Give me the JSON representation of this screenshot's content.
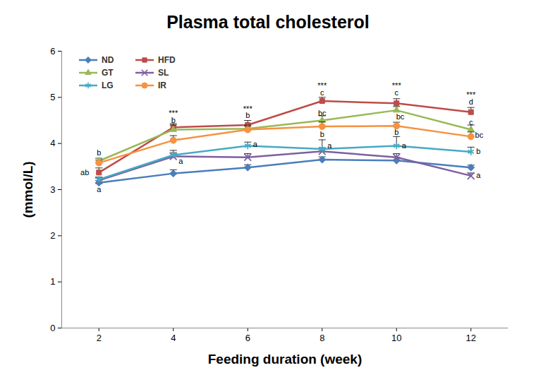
{
  "chart_data": {
    "type": "line",
    "title": "Plasma total cholesterol",
    "x_label": "Feeding duration (week)",
    "y_label": "(mmol/L)",
    "x": [
      2,
      4,
      6,
      8,
      10,
      12
    ],
    "xlim": [
      1,
      13
    ],
    "xticks": [
      2,
      4,
      6,
      8,
      10,
      12
    ],
    "ylim": [
      0,
      6
    ],
    "yticks": [
      0,
      1,
      2,
      3,
      4,
      5,
      6
    ],
    "grid": false,
    "legend": "top-left",
    "series": [
      {
        "name": "ND",
        "color": "#4a7ebb",
        "marker": "diamond",
        "values": [
          3.15,
          3.35,
          3.48,
          3.65,
          3.63,
          3.48
        ],
        "errors": [
          0.05,
          0.08,
          0.06,
          0.06,
          0.07,
          0.05
        ]
      },
      {
        "name": "HFD",
        "color": "#be4b48",
        "marker": "square",
        "values": [
          3.37,
          4.35,
          4.4,
          4.92,
          4.87,
          4.68
        ],
        "errors": [
          0.1,
          0.08,
          0.1,
          0.08,
          0.1,
          0.1
        ]
      },
      {
        "name": "GT",
        "color": "#98b954",
        "marker": "triangle",
        "values": [
          3.62,
          4.3,
          4.32,
          4.5,
          4.72,
          4.3
        ],
        "errors": [
          0.06,
          0.1,
          0.08,
          0.1,
          0.08,
          0.1
        ]
      },
      {
        "name": "SL",
        "color": "#7d60a0",
        "marker": "x",
        "values": [
          3.2,
          3.72,
          3.7,
          3.83,
          3.7,
          3.3
        ],
        "errors": [
          0.05,
          0.08,
          0.08,
          0.08,
          0.08,
          0.06
        ]
      },
      {
        "name": "LG",
        "color": "#46aac5",
        "marker": "asterisk",
        "values": [
          3.22,
          3.75,
          3.95,
          3.88,
          3.95,
          3.82
        ],
        "errors": [
          0.05,
          0.1,
          0.08,
          0.2,
          0.2,
          0.1
        ]
      },
      {
        "name": "IR",
        "color": "#f69240",
        "marker": "circle",
        "values": [
          3.58,
          4.07,
          4.3,
          4.37,
          4.38,
          4.15
        ],
        "errors": [
          0.06,
          0.1,
          0.08,
          0.1,
          0.08,
          0.1
        ]
      }
    ],
    "annotations": [
      {
        "x": 2,
        "y": 3.8,
        "text": "b"
      },
      {
        "x": 1.62,
        "y": 3.37,
        "text": "ab"
      },
      {
        "x": 2,
        "y": 3.0,
        "text": "a"
      },
      {
        "x": 4,
        "y": 4.65,
        "text": "***"
      },
      {
        "x": 4,
        "y": 4.5,
        "text": "b"
      },
      {
        "x": 4.2,
        "y": 3.62,
        "text": "a"
      },
      {
        "x": 6,
        "y": 4.75,
        "text": "***"
      },
      {
        "x": 6,
        "y": 4.6,
        "text": "b"
      },
      {
        "x": 6.2,
        "y": 3.98,
        "text": "a"
      },
      {
        "x": 8,
        "y": 5.25,
        "text": "***"
      },
      {
        "x": 8,
        "y": 5.1,
        "text": "c"
      },
      {
        "x": 8,
        "y": 4.66,
        "text": "bc"
      },
      {
        "x": 8,
        "y": 4.2,
        "text": "b"
      },
      {
        "x": 8.2,
        "y": 3.95,
        "text": "a"
      },
      {
        "x": 10,
        "y": 5.25,
        "text": "***"
      },
      {
        "x": 10,
        "y": 5.1,
        "text": "c"
      },
      {
        "x": 10.1,
        "y": 4.58,
        "text": "bc"
      },
      {
        "x": 10,
        "y": 4.24,
        "text": "b"
      },
      {
        "x": 10.2,
        "y": 3.95,
        "text": "a"
      },
      {
        "x": 12,
        "y": 5.05,
        "text": "***"
      },
      {
        "x": 12,
        "y": 4.9,
        "text": "d"
      },
      {
        "x": 12,
        "y": 4.45,
        "text": "c"
      },
      {
        "x": 12.22,
        "y": 4.18,
        "text": "bc"
      },
      {
        "x": 12.2,
        "y": 3.82,
        "text": "b"
      },
      {
        "x": 12.2,
        "y": 3.3,
        "text": "a"
      }
    ]
  }
}
